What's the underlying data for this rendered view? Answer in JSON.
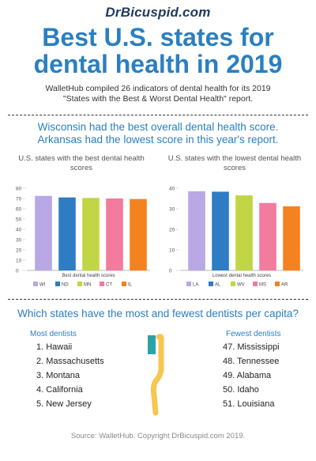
{
  "brand": "DrBicuspid.com",
  "title_line1": "Best U.S. states for",
  "title_line2": "dental health in 2019",
  "intro_line1": "WalletHub compiled 26 indicators of dental health for its 2019",
  "intro_line2": "\"States with the Best & Worst Dental Health\" report.",
  "headline_line1": "Wisconsin had the best overall dental health score.",
  "headline_line2": "Arkansas had the lowest score in this year's report.",
  "chart_data": [
    {
      "type": "bar",
      "title": "U.S. states with the best dental health scores",
      "title_line1": "U.S. states with the best dental health",
      "title_line2": "scores",
      "xlabel": "Best dental health scores",
      "categories": [
        "WI",
        "ND",
        "MN",
        "CT",
        "IL"
      ],
      "values": [
        72.5,
        71,
        70.5,
        70,
        69.5
      ],
      "colors": [
        "#b9a8e6",
        "#2d7cc4",
        "#c2d544",
        "#f27b9e",
        "#f58220"
      ],
      "ylim": [
        0,
        80
      ],
      "yticks": [
        0,
        10,
        20,
        30,
        40,
        50,
        60,
        70,
        80
      ],
      "grid": false,
      "legend": "bottom"
    },
    {
      "type": "bar",
      "title": "U.S. states with the lowest dental health scores",
      "title_line1": "U.S. states with the lowest dental health",
      "title_line2": "scores",
      "xlabel": "Lowest dental health scores",
      "categories": [
        "LA",
        "AL",
        "WV",
        "MS",
        "AR"
      ],
      "values": [
        38.5,
        38.3,
        36.5,
        32.8,
        31.2
      ],
      "colors": [
        "#b9a8e6",
        "#2d7cc4",
        "#c2d544",
        "#f27b9e",
        "#f58220"
      ],
      "ylim": [
        0,
        40
      ],
      "yticks": [
        0,
        10,
        20,
        30,
        40
      ],
      "grid": false,
      "legend": "bottom"
    }
  ],
  "question": "Which states have the most and fewest dentists per capita?",
  "most": {
    "heading": "Most dentists",
    "items": [
      "1. Hawaii",
      "2. Massachusetts",
      "3. Montana",
      "4. California",
      "5. New Jersey"
    ]
  },
  "fewest": {
    "heading": "Fewest dentists",
    "items": [
      "47. Mississippi",
      "48. Tennessee",
      "49. Alabama",
      "50. Idaho",
      "51. Louisiana"
    ]
  },
  "source": "Source: WalletHub. Copyright DrBicuspid.com 2019.",
  "colors": {
    "accent": "#2b7fc1",
    "brand": "#1f3a5f",
    "toothbrush_handle": "#f7c64f",
    "toothbrush_head": "#2ba3a6"
  }
}
